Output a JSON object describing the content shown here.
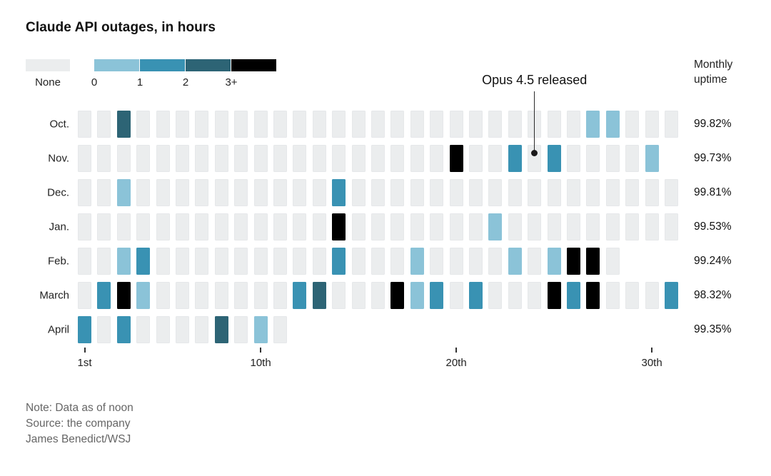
{
  "title": "Claude API outages, in hours",
  "uptime_header": "Monthly\nuptime",
  "footer": {
    "note": "Note: Data as of noon",
    "source": "Source: the company",
    "credit": "James Benedict/WSJ"
  },
  "chart_data": {
    "type": "heatmap",
    "title": "Claude API outages, in hours",
    "unit": "hours of outage per day",
    "legend": [
      {
        "label": "None",
        "bucket": "none",
        "color": "#ebedee"
      },
      {
        "label": "0",
        "bucket": "0",
        "color": "#8bc3d8"
      },
      {
        "label": "1",
        "bucket": "1",
        "color": "#3992b3"
      },
      {
        "label": "2",
        "bucket": "2",
        "color": "#2d6475"
      },
      {
        "label": "3+",
        "bucket": "3+",
        "color": "#000000"
      }
    ],
    "x_ticks": [
      {
        "day": 1,
        "label": "1st"
      },
      {
        "day": 10,
        "label": "10th"
      },
      {
        "day": 20,
        "label": "20th"
      },
      {
        "day": 30,
        "label": "30th"
      }
    ],
    "rows": [
      {
        "month": "Oct.",
        "days_shown": 31,
        "uptime": "99.82%",
        "outage_days": [
          {
            "day": 3,
            "bucket": "2"
          },
          {
            "day": 27,
            "bucket": "0"
          },
          {
            "day": 28,
            "bucket": "0"
          }
        ]
      },
      {
        "month": "Nov.",
        "days_shown": 30,
        "uptime": "99.73%",
        "outage_days": [
          {
            "day": 20,
            "bucket": "3+"
          },
          {
            "day": 23,
            "bucket": "1"
          },
          {
            "day": 25,
            "bucket": "1"
          },
          {
            "day": 30,
            "bucket": "0"
          }
        ]
      },
      {
        "month": "Dec.",
        "days_shown": 31,
        "uptime": "99.81%",
        "outage_days": [
          {
            "day": 3,
            "bucket": "0"
          },
          {
            "day": 14,
            "bucket": "1"
          }
        ]
      },
      {
        "month": "Jan.",
        "days_shown": 31,
        "uptime": "99.53%",
        "outage_days": [
          {
            "day": 14,
            "bucket": "3+"
          },
          {
            "day": 22,
            "bucket": "0"
          }
        ]
      },
      {
        "month": "Feb.",
        "days_shown": 28,
        "uptime": "99.24%",
        "outage_days": [
          {
            "day": 3,
            "bucket": "0"
          },
          {
            "day": 4,
            "bucket": "1"
          },
          {
            "day": 14,
            "bucket": "1"
          },
          {
            "day": 18,
            "bucket": "0"
          },
          {
            "day": 23,
            "bucket": "0"
          },
          {
            "day": 25,
            "bucket": "0"
          },
          {
            "day": 26,
            "bucket": "3+"
          },
          {
            "day": 27,
            "bucket": "3+"
          }
        ]
      },
      {
        "month": "March",
        "days_shown": 31,
        "uptime": "98.32%",
        "outage_days": [
          {
            "day": 2,
            "bucket": "1"
          },
          {
            "day": 3,
            "bucket": "3+"
          },
          {
            "day": 4,
            "bucket": "0"
          },
          {
            "day": 12,
            "bucket": "1"
          },
          {
            "day": 13,
            "bucket": "2"
          },
          {
            "day": 17,
            "bucket": "3+"
          },
          {
            "day": 18,
            "bucket": "0"
          },
          {
            "day": 19,
            "bucket": "1"
          },
          {
            "day": 21,
            "bucket": "1"
          },
          {
            "day": 25,
            "bucket": "3+"
          },
          {
            "day": 26,
            "bucket": "1"
          },
          {
            "day": 27,
            "bucket": "3+"
          },
          {
            "day": 31,
            "bucket": "1"
          }
        ]
      },
      {
        "month": "April",
        "days_shown": 11,
        "uptime": "99.35%",
        "outage_days": [
          {
            "day": 1,
            "bucket": "1"
          },
          {
            "day": 3,
            "bucket": "1"
          },
          {
            "day": 8,
            "bucket": "2"
          },
          {
            "day": 10,
            "bucket": "0"
          }
        ]
      }
    ],
    "annotation": {
      "label": "Opus 4.5 released",
      "month": "Nov.",
      "day": 24
    },
    "uptime_column_header": "Monthly uptime",
    "layout_hints": {
      "legend_position": "top-left",
      "grid": false
    }
  }
}
